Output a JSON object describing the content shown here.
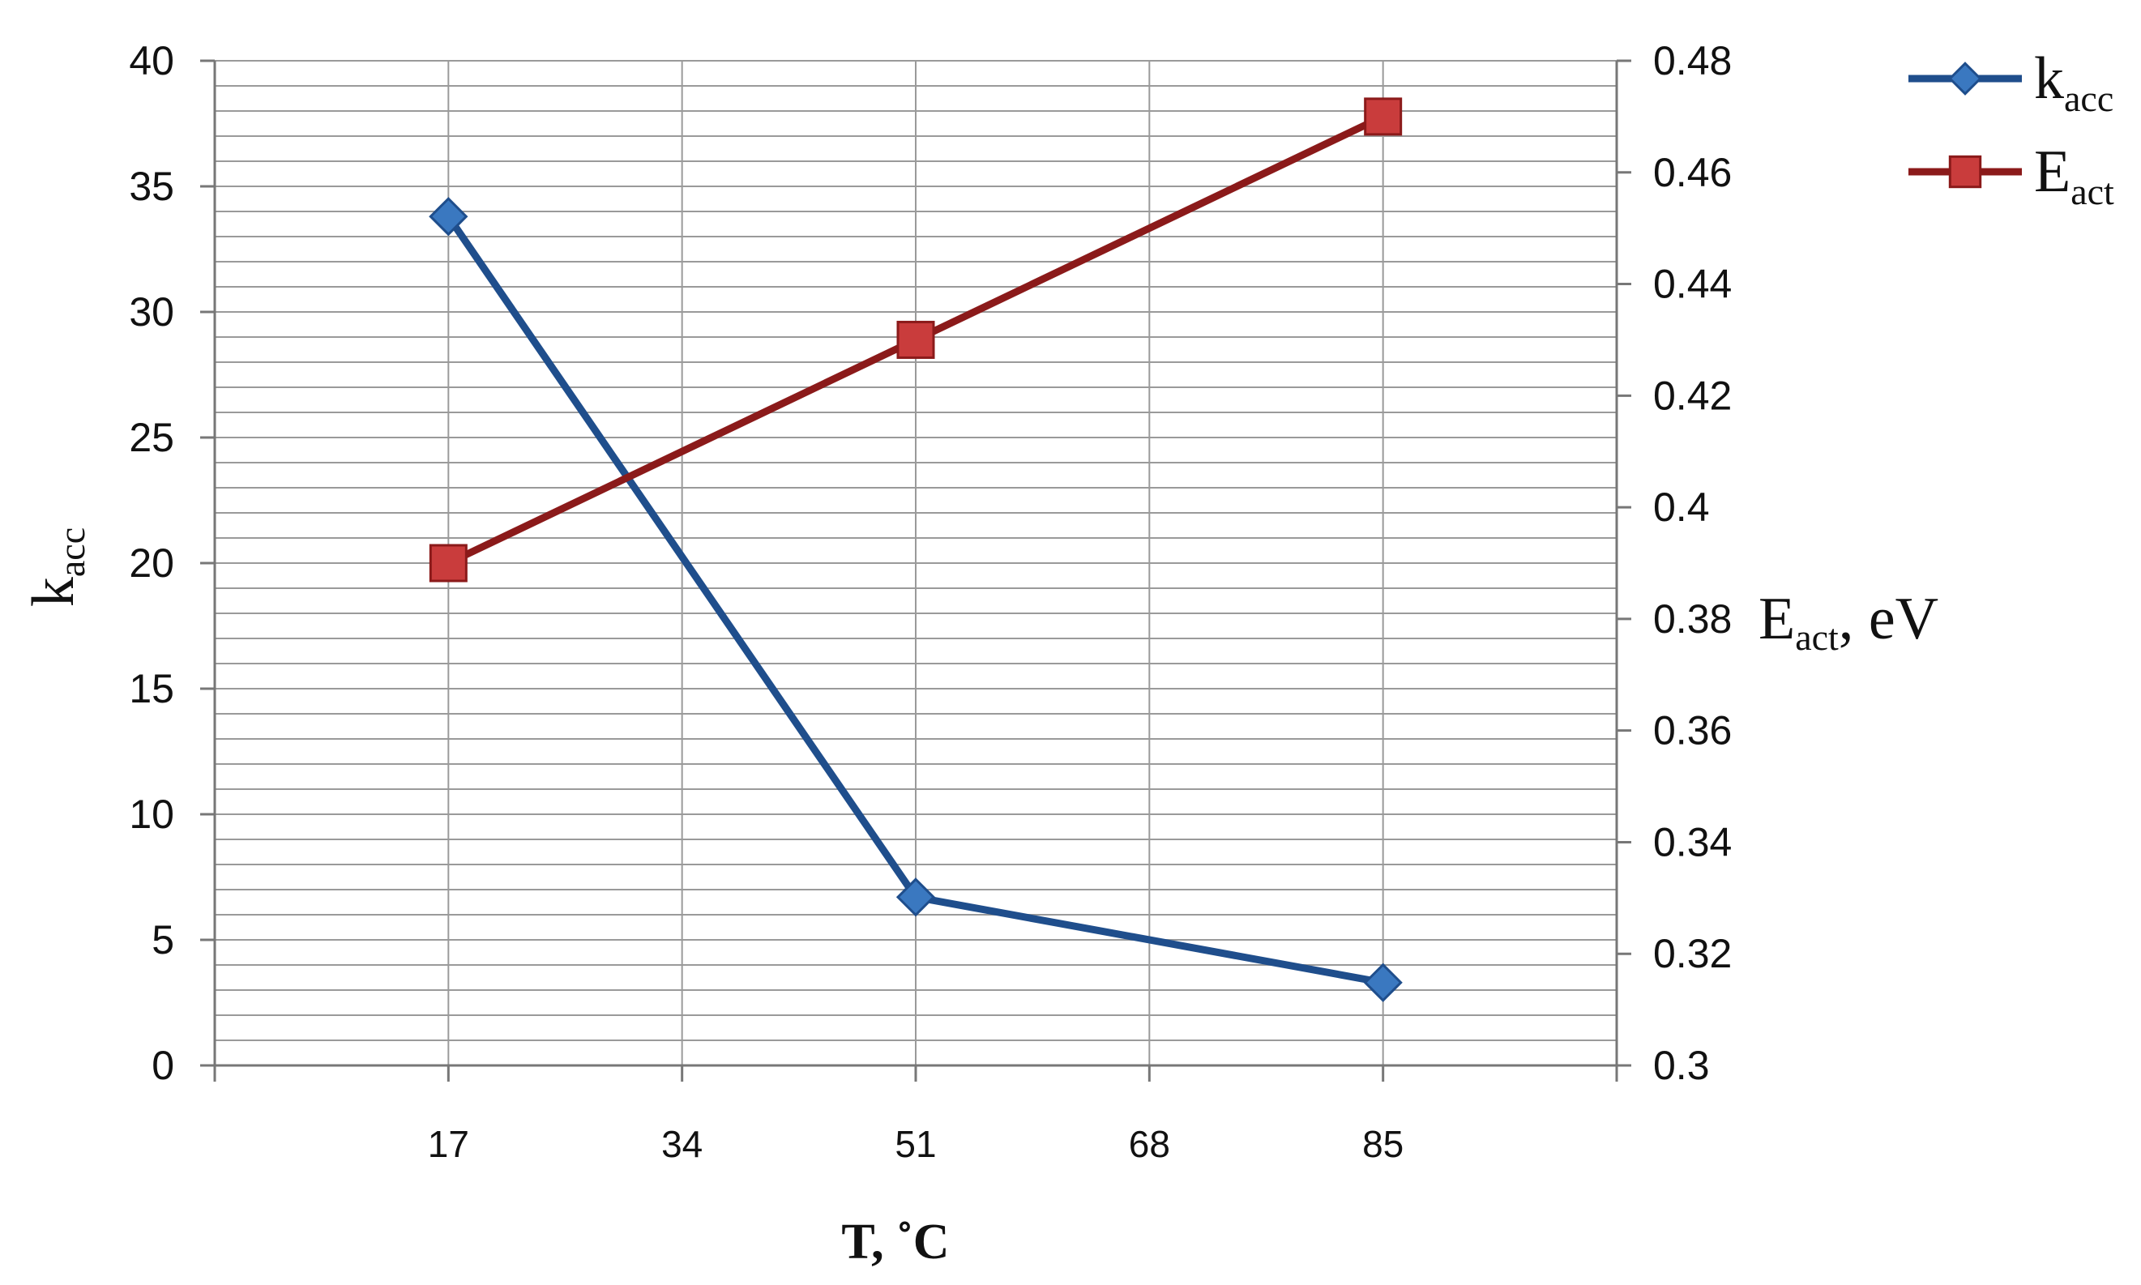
{
  "chart_data": {
    "type": "line",
    "x_categories": [
      "17",
      "51",
      "85"
    ],
    "x_ticks": [
      "17",
      "34",
      "51",
      "68",
      "85"
    ],
    "x_values": [
      17,
      51,
      85
    ],
    "xlim": [
      0,
      102
    ],
    "xlabel": "T, ˚C",
    "ylabel_left": {
      "main": "k",
      "sub": "acc"
    },
    "ylabel_right": {
      "main": "E",
      "sub": "act",
      "suffix": ", eV"
    },
    "ylim_left": [
      0,
      40
    ],
    "ylim_right": [
      0.3,
      0.48
    ],
    "yticks_left": [
      "0",
      "5",
      "10",
      "15",
      "20",
      "25",
      "30",
      "35",
      "40"
    ],
    "yticks_right": [
      "0.3",
      "0.32",
      "0.34",
      "0.36",
      "0.38",
      "0.4",
      "0.42",
      "0.44",
      "0.46",
      "0.48"
    ],
    "grid": true,
    "legend_position": "top-right",
    "series": [
      {
        "name_main": "k",
        "name_sub": "acc",
        "axis": "left",
        "marker": "diamond",
        "color": "#1f4e8c",
        "marker_color": "#3a78c0",
        "values": [
          33.8,
          6.7,
          3.3
        ]
      },
      {
        "name_main": "E",
        "name_sub": "act",
        "axis": "right",
        "marker": "square",
        "color": "#8b1a1a",
        "marker_color": "#c93c3c",
        "values": [
          0.39,
          0.43,
          0.47
        ]
      }
    ]
  }
}
